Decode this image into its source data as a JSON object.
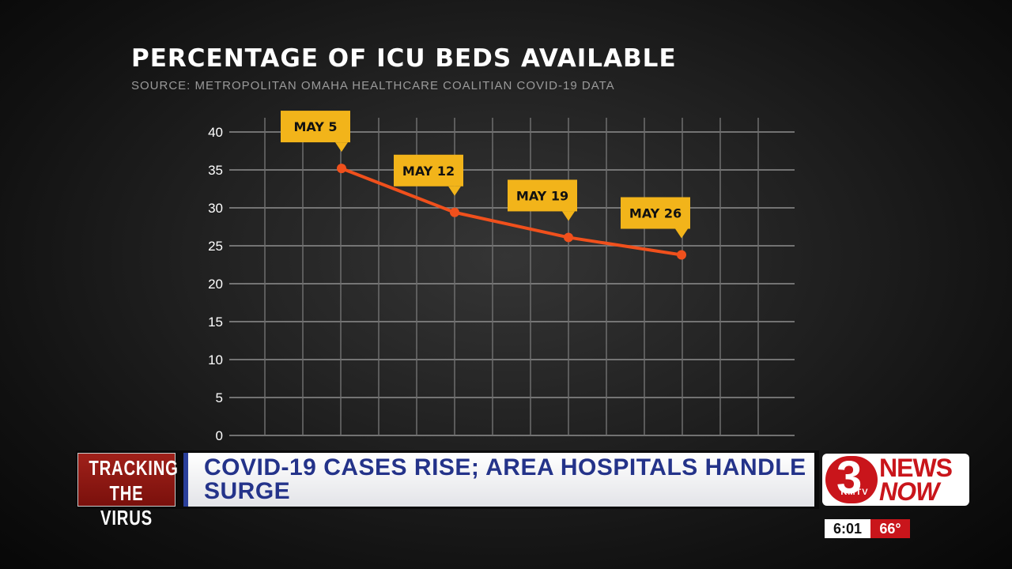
{
  "chart_data": {
    "type": "line",
    "title": "PERCENTAGE OF ICU BEDS AVAILABLE",
    "subtitle": "SOURCE: METROPOLITAN OMAHA HEALTHCARE COALITIAN COVID-19 DATA",
    "ylim": [
      0,
      40
    ],
    "yticks": [
      "0",
      "5",
      "10",
      "15",
      "20",
      "25",
      "30",
      "35",
      "40"
    ],
    "grid": true,
    "series": [
      {
        "color": "#f0501c",
        "points": [
          {
            "label": "MAY 5",
            "value": 35.2
          },
          {
            "label": "MAY 12",
            "value": 29.4
          },
          {
            "label": "MAY 19",
            "value": 26.1
          },
          {
            "label": "MAY 26",
            "value": 23.8
          }
        ]
      }
    ],
    "callout_color": "#f2b41a"
  },
  "ticker": {
    "tag_line1": "TRACKING",
    "tag_line2": "THE VIRUS",
    "headline": "COVID-19 CASES RISE; AREA HOSPITALS HANDLE SURGE"
  },
  "logo": {
    "number": "3",
    "callsign": "KMTV",
    "word1": "NEWS",
    "word2": "NOW"
  },
  "status": {
    "time": "6:01",
    "temperature": "66°"
  }
}
